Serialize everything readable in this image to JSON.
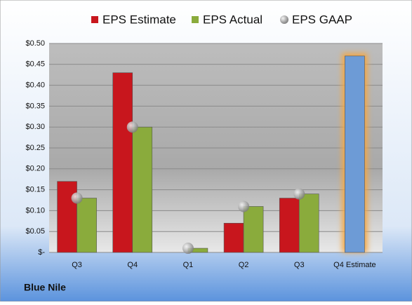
{
  "chart_data": {
    "type": "bar",
    "footer": "Blue Nile",
    "categories": [
      "Q3",
      "Q4",
      "Q1",
      "Q2",
      "Q3",
      "Q4 Estimate"
    ],
    "series": [
      {
        "name": "EPS Estimate",
        "color": "#c8161d",
        "colors": [
          "#c8161d",
          "#c8161d",
          "#c8161d",
          "#c8161d",
          "#c8161d",
          "#6d9bd6"
        ],
        "values": [
          0.17,
          0.43,
          0,
          0.07,
          0.13,
          0.47
        ]
      },
      {
        "name": "EPS Actual",
        "color": "#8aab3c",
        "values": [
          0.13,
          0.3,
          0.01,
          0.11,
          0.14,
          null
        ]
      },
      {
        "name": "EPS GAAP",
        "color": "#9a9a9a",
        "marker": "circle",
        "values": [
          0.13,
          0.3,
          0.01,
          0.11,
          0.14,
          null
        ]
      }
    ],
    "ylim": [
      0,
      0.5
    ],
    "yticks": [
      {
        "value": 0,
        "label": "$-"
      },
      {
        "value": 0.05,
        "label": "$0.05"
      },
      {
        "value": 0.1,
        "label": "$0.10"
      },
      {
        "value": 0.15,
        "label": "$0.15"
      },
      {
        "value": 0.2,
        "label": "$0.20"
      },
      {
        "value": 0.25,
        "label": "$0.25"
      },
      {
        "value": 0.3,
        "label": "$0.30"
      },
      {
        "value": 0.35,
        "label": "$0.35"
      },
      {
        "value": 0.4,
        "label": "$0.40"
      },
      {
        "value": 0.45,
        "label": "$0.45"
      },
      {
        "value": 0.5,
        "label": "$0.50"
      }
    ],
    "grid": true
  }
}
